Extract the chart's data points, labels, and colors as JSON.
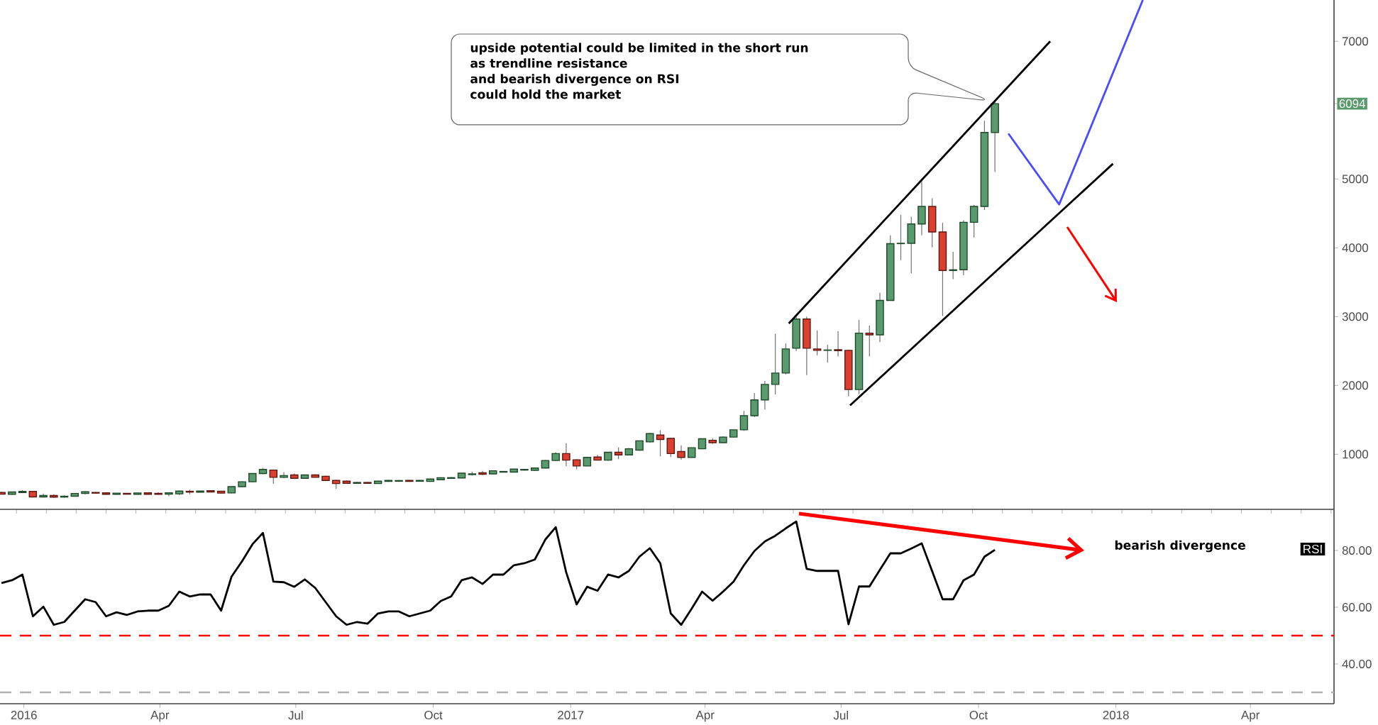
{
  "chart_data": [
    {
      "type": "candlestick",
      "x": [
        "2015-12-17",
        "2015-12-24",
        "2015-12-31",
        "2016-01-07",
        "2016-01-14",
        "2016-01-21",
        "2016-01-28",
        "2016-02-04",
        "2016-02-11",
        "2016-02-18",
        "2016-02-25",
        "2016-03-03",
        "2016-03-10",
        "2016-03-17",
        "2016-03-24",
        "2016-03-31",
        "2016-04-07",
        "2016-04-14",
        "2016-04-21",
        "2016-04-28",
        "2016-05-05",
        "2016-05-12",
        "2016-05-19",
        "2016-05-26",
        "2016-06-02",
        "2016-06-09",
        "2016-06-16",
        "2016-06-23",
        "2016-06-30",
        "2016-07-07",
        "2016-07-14",
        "2016-07-21",
        "2016-07-28",
        "2016-08-04",
        "2016-08-11",
        "2016-08-18",
        "2016-08-25",
        "2016-09-01",
        "2016-09-08",
        "2016-09-15",
        "2016-09-22",
        "2016-09-29",
        "2016-10-06",
        "2016-10-13",
        "2016-10-20",
        "2016-10-27",
        "2016-11-03",
        "2016-11-10",
        "2016-11-17",
        "2016-11-24",
        "2016-12-01",
        "2016-12-08",
        "2016-12-15",
        "2016-12-22",
        "2016-12-29",
        "2017-01-05",
        "2017-01-12",
        "2017-01-19",
        "2017-01-26",
        "2017-02-02",
        "2017-02-09",
        "2017-02-16",
        "2017-02-23",
        "2017-03-02",
        "2017-03-09",
        "2017-03-16",
        "2017-03-23",
        "2017-03-30",
        "2017-04-06",
        "2017-04-13",
        "2017-04-20",
        "2017-04-27",
        "2017-05-04",
        "2017-05-11",
        "2017-05-18",
        "2017-05-25",
        "2017-06-01",
        "2017-06-08",
        "2017-06-15",
        "2017-06-22",
        "2017-06-29",
        "2017-07-06",
        "2017-07-13",
        "2017-07-20",
        "2017-07-27",
        "2017-08-03",
        "2017-08-10",
        "2017-08-17",
        "2017-08-24",
        "2017-08-31",
        "2017-09-07",
        "2017-09-14",
        "2017-09-21",
        "2017-09-28",
        "2017-10-05",
        "2017-10-12"
      ],
      "ohlc": [
        [
          445,
          455,
          415,
          420
        ],
        [
          418,
          455,
          412,
          452
        ],
        [
          445,
          478,
          435,
          460
        ],
        [
          460,
          465,
          372,
          380
        ],
        [
          380,
          430,
          372,
          400
        ],
        [
          400,
          420,
          370,
          378
        ],
        [
          378,
          405,
          370,
          390
        ],
        [
          390,
          438,
          385,
          430
        ],
        [
          430,
          462,
          420,
          455
        ],
        [
          445,
          452,
          430,
          435
        ],
        [
          440,
          445,
          412,
          418
        ],
        [
          418,
          438,
          412,
          435
        ],
        [
          432,
          438,
          415,
          420
        ],
        [
          418,
          440,
          414,
          438
        ],
        [
          440,
          445,
          415,
          418
        ],
        [
          432,
          446,
          414,
          418
        ],
        [
          420,
          445,
          390,
          440
        ],
        [
          425,
          470,
          405,
          465
        ],
        [
          462,
          482,
          420,
          450
        ],
        [
          450,
          470,
          445,
          465
        ],
        [
          470,
          478,
          448,
          452
        ],
        [
          462,
          468,
          430,
          435
        ],
        [
          438,
          535,
          432,
          530
        ],
        [
          530,
          610,
          525,
          600
        ],
        [
          600,
          725,
          595,
          720
        ],
        [
          720,
          800,
          710,
          780
        ],
        [
          770,
          780,
          570,
          665
        ],
        [
          665,
          740,
          650,
          690
        ],
        [
          700,
          720,
          640,
          650
        ],
        [
          650,
          705,
          645,
          700
        ],
        [
          700,
          710,
          660,
          665
        ],
        [
          680,
          690,
          615,
          620
        ],
        [
          620,
          630,
          495,
          575
        ],
        [
          610,
          620,
          570,
          578
        ],
        [
          578,
          600,
          570,
          590
        ],
        [
          590,
          598,
          572,
          578
        ],
        [
          575,
          615,
          570,
          610
        ],
        [
          605,
          628,
          600,
          620
        ],
        [
          608,
          625,
          600,
          618
        ],
        [
          620,
          628,
          600,
          605
        ],
        [
          608,
          626,
          602,
          620
        ],
        [
          605,
          645,
          600,
          640
        ],
        [
          630,
          665,
          625,
          660
        ],
        [
          650,
          668,
          645,
          660
        ],
        [
          655,
          730,
          650,
          725
        ],
        [
          705,
          745,
          690,
          715
        ],
        [
          730,
          760,
          700,
          710
        ],
        [
          715,
          765,
          710,
          760
        ],
        [
          740,
          758,
          735,
          750
        ],
        [
          740,
          790,
          735,
          785
        ],
        [
          770,
          785,
          765,
          780
        ],
        [
          765,
          805,
          755,
          800
        ],
        [
          800,
          915,
          795,
          910
        ],
        [
          910,
          1030,
          900,
          1010
        ],
        [
          1010,
          1160,
          825,
          915
        ],
        [
          920,
          930,
          780,
          830
        ],
        [
          830,
          960,
          825,
          955
        ],
        [
          960,
          990,
          910,
          915
        ],
        [
          915,
          1035,
          905,
          1030
        ],
        [
          1030,
          1100,
          930,
          990
        ],
        [
          990,
          1090,
          985,
          1080
        ],
        [
          1060,
          1200,
          1050,
          1195
        ],
        [
          1180,
          1310,
          1170,
          1300
        ],
        [
          1280,
          1350,
          970,
          1215
        ],
        [
          1230,
          1240,
          960,
          1010
        ],
        [
          1040,
          1130,
          920,
          955
        ],
        [
          955,
          1100,
          950,
          1095
        ],
        [
          1080,
          1230,
          1075,
          1225
        ],
        [
          1203,
          1230,
          1150,
          1169
        ],
        [
          1169,
          1260,
          1160,
          1250
        ],
        [
          1250,
          1360,
          1240,
          1355
        ],
        [
          1355,
          1630,
          1340,
          1560
        ],
        [
          1560,
          1890,
          1540,
          1790
        ],
        [
          1790,
          2065,
          1650,
          2015
        ],
        [
          2015,
          2750,
          1870,
          2180
        ],
        [
          2180,
          2610,
          2160,
          2530
        ],
        [
          2540,
          2995,
          2500,
          2965
        ],
        [
          2965,
          3000,
          2150,
          2540
        ],
        [
          2530,
          2800,
          2440,
          2510
        ],
        [
          2510,
          2590,
          2330,
          2515
        ],
        [
          2520,
          2790,
          2420,
          2505
        ],
        [
          2510,
          2520,
          1840,
          1940
        ],
        [
          1940,
          2950,
          1870,
          2760
        ],
        [
          2760,
          2870,
          2420,
          2735
        ],
        [
          2735,
          3345,
          2630,
          3235
        ],
        [
          3235,
          4180,
          3230,
          4060
        ],
        [
          4060,
          4480,
          3820,
          4065
        ],
        [
          4065,
          4450,
          3630,
          4345
        ],
        [
          4345,
          5005,
          4180,
          4600
        ],
        [
          4600,
          4720,
          4005,
          4230
        ],
        [
          4230,
          4365,
          3010,
          3670
        ],
        [
          3670,
          3940,
          3545,
          3680
        ],
        [
          3680,
          4400,
          3600,
          4370
        ],
        [
          4370,
          4620,
          4150,
          4600
        ],
        [
          4600,
          5845,
          4550,
          5675
        ],
        [
          5675,
          6150,
          5100,
          6094
        ]
      ],
      "series": [
        {
          "type": "line",
          "color": "#000000",
          "x": [
            "2017-05-27",
            "2017-11-18"
          ],
          "values": [
            2900,
            7000
          ]
        },
        {
          "type": "line",
          "color": "#000000",
          "x": [
            "2017-07-07",
            "2017-12-30"
          ],
          "values": [
            1710,
            5220
          ]
        },
        {
          "type": "line",
          "color": "#4b4bff",
          "x": [
            "2017-10-21",
            "2017-11-24",
            "2018-01-19"
          ],
          "values": [
            5660,
            4630,
            7600
          ]
        }
      ],
      "xlim": [
        "2015-12-16",
        "2018-05-27"
      ],
      "ylim": [
        200,
        7600
      ],
      "yticks": [
        1000,
        2000,
        3000,
        4000,
        5000,
        {
          "value": 6094,
          "label": "6094"
        },
        7000
      ],
      "tick_labels": "y",
      "annotations": [
        "upside potential could be limited in the short run",
        "as trendline resistance",
        "and bearish divergence on RSI",
        "could hold the market"
      ]
    },
    {
      "type": "line",
      "x": [
        "2015-12-17",
        "2015-12-24",
        "2015-12-31",
        "2016-01-07",
        "2016-01-14",
        "2016-01-21",
        "2016-01-28",
        "2016-02-04",
        "2016-02-11",
        "2016-02-18",
        "2016-02-25",
        "2016-03-03",
        "2016-03-10",
        "2016-03-17",
        "2016-03-24",
        "2016-03-31",
        "2016-04-07",
        "2016-04-14",
        "2016-04-21",
        "2016-04-28",
        "2016-05-05",
        "2016-05-12",
        "2016-05-19",
        "2016-05-26",
        "2016-06-02",
        "2016-06-09",
        "2016-06-16",
        "2016-06-23",
        "2016-06-30",
        "2016-07-07",
        "2016-07-14",
        "2016-07-21",
        "2016-07-28",
        "2016-08-04",
        "2016-08-11",
        "2016-08-18",
        "2016-08-25",
        "2016-09-01",
        "2016-09-08",
        "2016-09-15",
        "2016-09-22",
        "2016-09-29",
        "2016-10-06",
        "2016-10-13",
        "2016-10-20",
        "2016-10-27",
        "2016-11-03",
        "2016-11-10",
        "2016-11-17",
        "2016-11-24",
        "2016-12-01",
        "2016-12-08",
        "2016-12-15",
        "2016-12-22",
        "2016-12-29",
        "2017-01-05",
        "2017-01-12",
        "2017-01-19",
        "2017-01-26",
        "2017-02-02",
        "2017-02-09",
        "2017-02-16",
        "2017-02-23",
        "2017-03-02",
        "2017-03-09",
        "2017-03-16",
        "2017-03-23",
        "2017-03-30",
        "2017-04-06",
        "2017-04-13",
        "2017-04-20",
        "2017-04-27",
        "2017-05-04",
        "2017-05-11",
        "2017-05-18",
        "2017-05-25",
        "2017-06-01",
        "2017-06-08",
        "2017-06-15",
        "2017-06-22",
        "2017-06-29",
        "2017-07-06",
        "2017-07-13",
        "2017-07-20",
        "2017-07-27",
        "2017-08-03",
        "2017-08-10",
        "2017-08-17",
        "2017-08-24",
        "2017-08-31",
        "2017-09-07",
        "2017-09-14",
        "2017-09-21",
        "2017-09-28",
        "2017-10-05",
        "2017-10-12"
      ],
      "series": [
        {
          "name": "RSI",
          "color": "#000000",
          "values": [
            68.5,
            69.5,
            71.5,
            56.8,
            60.2,
            53.8,
            54.8,
            58.8,
            62.8,
            61.8,
            56.8,
            58.2,
            57.3,
            58.5,
            58.8,
            58.8,
            60.5,
            65.5,
            63.8,
            64.5,
            64.5,
            58.8,
            70.8,
            76.2,
            82.2,
            86.2,
            69,
            68.8,
            67.2,
            69.8,
            66.8,
            61.8,
            56.8,
            53.8,
            54.8,
            54.2,
            57.8,
            58.5,
            58.5,
            56.8,
            57.8,
            58.8,
            62.2,
            63.8,
            69.5,
            70.5,
            68.2,
            71.5,
            71.5,
            74.8,
            75.5,
            76.8,
            83.8,
            88.2,
            72.3,
            61,
            67.2,
            65.8,
            71.5,
            70.5,
            72.8,
            77.8,
            80.8,
            75.5,
            57.8,
            53.8,
            59.5,
            65.5,
            62.3,
            65.5,
            69,
            74.8,
            79.8,
            83.2,
            85.2,
            87.8,
            90.2,
            73.5,
            72.8,
            72.8,
            72.8,
            54,
            67.3,
            67.3,
            73.2,
            79,
            79,
            80.7,
            82.5,
            72.7,
            62.8,
            62.8,
            69.5,
            71.5,
            77.8,
            80.2
          ]
        }
      ],
      "xlim": [
        "2015-12-16",
        "2018-05-27"
      ],
      "xticks": [
        {
          "value": "2016-01-01",
          "label": "2016"
        },
        {
          "value": "2016-04-01",
          "label": "Apr"
        },
        {
          "value": "2016-07-01",
          "label": "Jul"
        },
        {
          "value": "2016-10-01",
          "label": "Oct"
        },
        {
          "value": "2017-01-01",
          "label": "2017"
        },
        {
          "value": "2017-04-01",
          "label": "Apr"
        },
        {
          "value": "2017-07-01",
          "label": "Jul"
        },
        {
          "value": "2017-10-01",
          "label": "Oct"
        },
        {
          "value": "2018-01-01",
          "label": "2018"
        },
        {
          "value": "2018-04-01",
          "label": "Apr"
        }
      ],
      "ylim": [
        26,
        94.5
      ],
      "yticks": [
        {
          "value": 40,
          "label": "40.00"
        },
        {
          "value": 60,
          "label": "60.00"
        },
        {
          "value": 80,
          "label": "80.00"
        }
      ],
      "ref_lines": [
        {
          "axis": "y",
          "value": 50,
          "color": "#ff0000",
          "line_style": "dashed"
        },
        {
          "axis": "y",
          "value": 30,
          "color": "#b0b0b0",
          "line_style": "dashed"
        }
      ],
      "annotations": [
        "bearish divergence"
      ]
    }
  ]
}
